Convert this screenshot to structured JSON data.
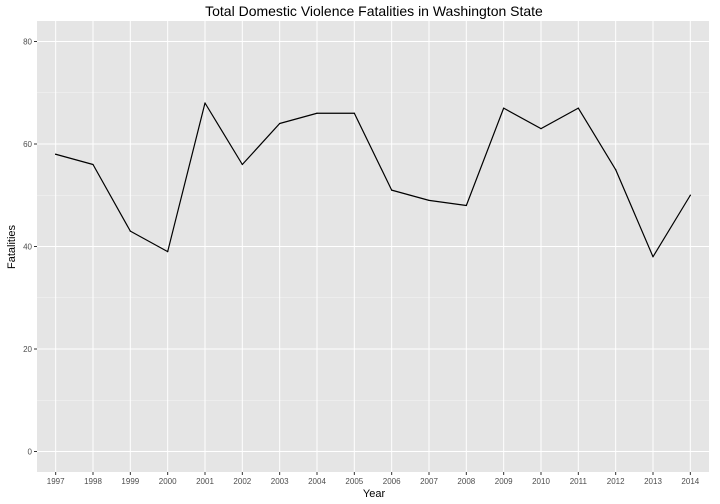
{
  "chart_data": {
    "type": "line",
    "title": "Total Domestic Violence Fatalities in Washington State",
    "xlabel": "Year",
    "ylabel": "Fatalities",
    "x": [
      "1997",
      "1998",
      "1999",
      "2000",
      "2001",
      "2002",
      "2003",
      "2004",
      "2005",
      "2006",
      "2007",
      "2008",
      "2009",
      "2010",
      "2011",
      "2012",
      "2013",
      "2014"
    ],
    "values": [
      58,
      56,
      43,
      39,
      68,
      56,
      64,
      66,
      66,
      51,
      49,
      48,
      67,
      63,
      67,
      55,
      38,
      50
    ],
    "ylim": [
      -4,
      84
    ],
    "yticks": [
      0,
      20,
      40,
      60,
      80
    ],
    "ytick_labels": [
      "0",
      "20",
      "40",
      "60",
      "80"
    ],
    "grid": true,
    "colors": {
      "panel": "#e5e5e5",
      "grid_major": "#ffffff",
      "line": "#000000"
    }
  }
}
